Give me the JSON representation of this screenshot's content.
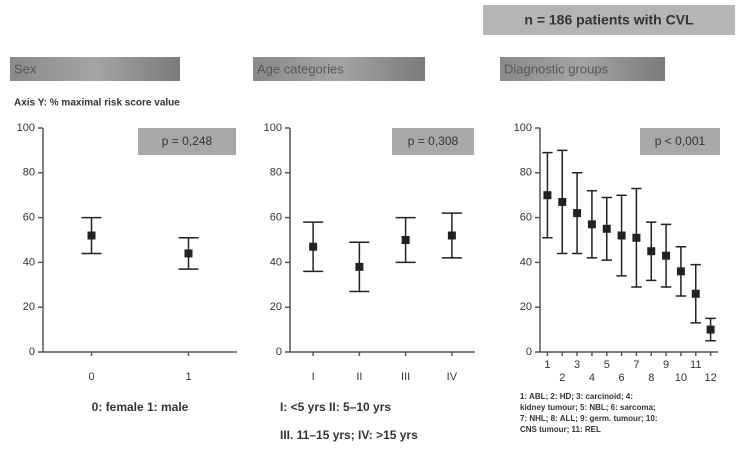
{
  "header": {
    "cohort": "n = 186 patients with CVL"
  },
  "axis_note": "Axis Y:  % maximal risk score value",
  "chart_data": [
    {
      "type": "errorbar",
      "title": "Sex",
      "p_label": "p = 0,248",
      "categories": [
        "0",
        "1"
      ],
      "values": [
        52,
        44
      ],
      "errors": [
        8,
        7
      ],
      "ylim": [
        0,
        100
      ],
      "yticks": [
        0,
        20,
        40,
        60,
        80,
        100
      ],
      "color": "#222222",
      "footnote": [
        "0: female   1: male"
      ]
    },
    {
      "type": "errorbar",
      "title": "Age categories",
      "p_label": "p = 0,308",
      "categories": [
        "I",
        "II",
        "III",
        "IV"
      ],
      "values": [
        47,
        38,
        50,
        52
      ],
      "errors": [
        11,
        11,
        10,
        10
      ],
      "ylim": [
        0,
        100
      ],
      "yticks": [
        0,
        20,
        40,
        60,
        80,
        100
      ],
      "color": "#222222",
      "footnote": [
        "I: <5 yrs II: 5–10 yrs",
        "III. 11–15 yrs; IV: >15 yrs"
      ]
    },
    {
      "type": "errorbar",
      "title": "Diagnostic groups",
      "p_label": "p < 0,001",
      "categories": [
        "1",
        "2",
        "3",
        "4",
        "5",
        "6",
        "7",
        "8",
        "9",
        "10",
        "11",
        "12"
      ],
      "values": [
        70,
        67,
        62,
        57,
        55,
        52,
        51,
        45,
        43,
        36,
        26,
        10
      ],
      "errors": [
        19,
        23,
        18,
        15,
        14,
        18,
        22,
        13,
        14,
        11,
        13,
        5
      ],
      "ylim": [
        0,
        100
      ],
      "yticks": [
        0,
        20,
        40,
        60,
        80,
        100
      ],
      "color": "#222222",
      "footnote": [
        "1: ABL; 2: HD; 3: carcinoid; 4:",
        "kidney tumour;  5: NBL; 6: sarcoma;",
        "7: NHL; 8: ALL; 9: germ. tumour; 10:",
        "CNS tumour; 11: REL"
      ]
    }
  ]
}
